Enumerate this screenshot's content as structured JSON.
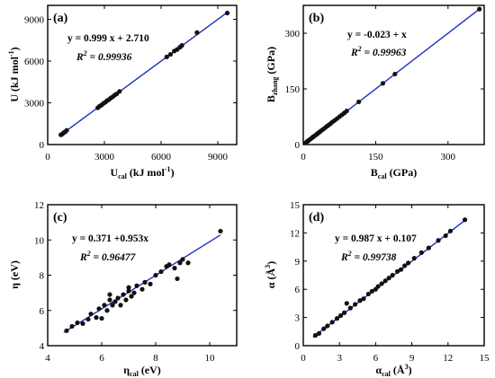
{
  "colors": {
    "fit_line": "#1a2fbf",
    "points": "#111111",
    "frame": "#000000"
  },
  "chart_data": [
    {
      "type": "scatter",
      "panel_tag": "(a)",
      "ylabel_main": "U (kJ mol",
      "ylabel_sup": "-1",
      "ylabel_tail": ")",
      "xlabel_main": "U",
      "xlabel_sub": "cal",
      "xlabel_tail": " (kJ mol",
      "xlabel_sup": "-1",
      "xlabel_tail2": ")",
      "xlim": [
        0,
        10000
      ],
      "ylim": [
        0,
        10000
      ],
      "xticks": [
        0,
        3000,
        6000,
        9000
      ],
      "yticks": [
        0,
        3000,
        6000,
        9000
      ],
      "equation": "y = 0.999 x + 2.710",
      "r2_label": "R",
      "r2_sup": "2",
      "r2_value": " = 0.99936",
      "fit": {
        "slope": 0.999,
        "intercept": 2.71,
        "x_range": [
          600,
          9500
        ]
      },
      "x": [
        700,
        780,
        850,
        920,
        1000,
        2650,
        2750,
        2850,
        2950,
        3050,
        3150,
        3250,
        3350,
        3450,
        3550,
        3650,
        3800,
        6300,
        6500,
        6700,
        6850,
        7000,
        7100,
        7900,
        9500
      ],
      "y": [
        700,
        760,
        860,
        900,
        1020,
        2640,
        2760,
        2840,
        2960,
        3040,
        3160,
        3240,
        3360,
        3440,
        3560,
        3640,
        3820,
        6300,
        6480,
        6720,
        6830,
        7000,
        7120,
        8050,
        9450
      ]
    },
    {
      "type": "scatter",
      "panel_tag": "(b)",
      "ylabel_main": "B",
      "ylabel_sub": "zhang",
      "ylabel_tail": " (GPa)",
      "xlabel_main": "B",
      "xlabel_sub": "cal",
      "xlabel_tail": " (GPa)",
      "xlim": [
        0,
        375
      ],
      "ylim": [
        0,
        375
      ],
      "xticks": [
        0,
        150,
        300
      ],
      "yticks": [
        0,
        150,
        300
      ],
      "equation": "y = -0.023 + x",
      "r2_label": "R",
      "r2_sup": "2",
      "r2_value": " = 0.99963",
      "fit": {
        "slope": 1.0,
        "intercept": -0.023,
        "x_range": [
          3,
          365
        ]
      },
      "x": [
        5,
        8,
        10,
        12,
        15,
        18,
        20,
        22,
        25,
        28,
        30,
        33,
        36,
        40,
        44,
        48,
        52,
        56,
        60,
        65,
        70,
        75,
        80,
        85,
        90,
        115,
        165,
        190,
        365
      ],
      "y": [
        5,
        8.2,
        10,
        12.3,
        15,
        18.1,
        20.2,
        22,
        25,
        27.8,
        30.3,
        33,
        36.2,
        40,
        44,
        48.3,
        52,
        56,
        60.4,
        65,
        70,
        75.2,
        80,
        85,
        90.5,
        115,
        165,
        190,
        365
      ]
    },
    {
      "type": "scatter",
      "panel_tag": "(c)",
      "ylabel_main": "η (eV)",
      "xlabel_main": "η",
      "xlabel_sub": "cal",
      "xlabel_tail": " (eV)",
      "xlim": [
        4,
        11
      ],
      "ylim": [
        4,
        12
      ],
      "xticks": [
        4,
        6,
        8,
        10
      ],
      "yticks": [
        4,
        6,
        8,
        10,
        12
      ],
      "equation": "y =  0.371 +0.953x",
      "r2_label": "R",
      "r2_sup": "2",
      "r2_value": " = 0.96477",
      "fit": {
        "slope": 0.953,
        "intercept": 0.371,
        "x_range": [
          4.6,
          10.4
        ]
      },
      "x": [
        4.7,
        4.9,
        5.1,
        5.3,
        5.5,
        5.6,
        5.8,
        5.9,
        6.0,
        6.1,
        6.2,
        6.3,
        6.3,
        6.4,
        6.5,
        6.6,
        6.7,
        6.8,
        6.9,
        7.0,
        7.0,
        7.1,
        7.2,
        7.3,
        7.5,
        7.6,
        7.8,
        8.0,
        8.2,
        8.4,
        8.5,
        8.7,
        8.8,
        8.9,
        9.0,
        9.2,
        10.4
      ],
      "y": [
        4.85,
        5.1,
        5.3,
        5.25,
        5.5,
        5.8,
        5.6,
        6.1,
        5.55,
        6.3,
        6.0,
        6.6,
        6.9,
        6.3,
        6.5,
        6.7,
        6.3,
        6.9,
        6.6,
        7.1,
        7.3,
        6.8,
        7.0,
        7.4,
        7.2,
        7.6,
        7.5,
        8.0,
        8.2,
        8.5,
        8.6,
        8.4,
        7.8,
        8.7,
        8.9,
        8.7,
        10.5
      ]
    },
    {
      "type": "scatter",
      "panel_tag": "(d)",
      "ylabel_main": "α (Å",
      "ylabel_sup": "3",
      "ylabel_tail": ")",
      "xlabel_main": "α",
      "xlabel_sub": "cal",
      "xlabel_tail": " (Å",
      "xlabel_sup": "3",
      "xlabel_tail2": ")",
      "xlim": [
        0,
        15
      ],
      "ylim": [
        0,
        15
      ],
      "xticks": [
        0,
        3,
        6,
        9,
        12,
        15
      ],
      "yticks": [
        0,
        3,
        6,
        9,
        12,
        15
      ],
      "equation": "y = 0.987 x + 0.107",
      "r2_label": "R",
      "r2_sup": "2",
      "r2_value": " = 0.99738",
      "fit": {
        "slope": 0.987,
        "intercept": 0.107,
        "x_range": [
          0.8,
          13.5
        ]
      },
      "x": [
        1.0,
        1.3,
        1.7,
        2.0,
        2.4,
        2.8,
        3.1,
        3.4,
        3.6,
        3.9,
        4.3,
        4.7,
        5.0,
        5.4,
        5.7,
        6.0,
        6.2,
        6.5,
        6.8,
        7.1,
        7.4,
        7.8,
        8.1,
        8.4,
        8.7,
        9.2,
        9.8,
        10.4,
        11.2,
        11.8,
        12.2,
        13.4
      ],
      "y": [
        1.1,
        1.3,
        1.8,
        2.1,
        2.5,
        2.9,
        3.2,
        3.5,
        4.5,
        4.0,
        4.4,
        4.8,
        5.0,
        5.5,
        5.8,
        6.0,
        6.3,
        6.6,
        6.9,
        7.2,
        7.5,
        7.9,
        8.1,
        8.5,
        8.8,
        9.3,
        9.9,
        10.4,
        11.2,
        11.7,
        12.2,
        13.4
      ]
    }
  ]
}
